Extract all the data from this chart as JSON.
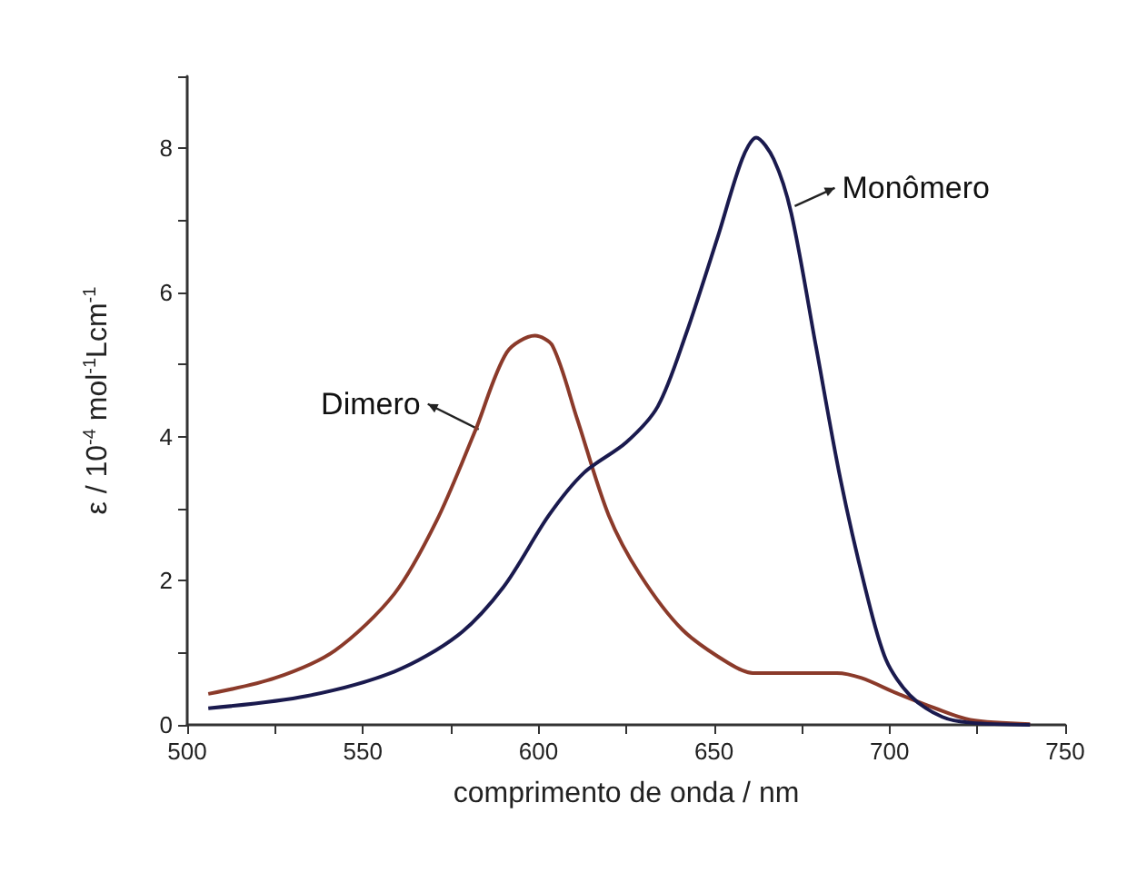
{
  "chart_data": {
    "type": "line",
    "xlabel": "comprimento de onda / nm",
    "ylabel": "ε / 10$^{-4}$ mol$^{-1}$Lcm$^{-1}$",
    "xlim": [
      500,
      750
    ],
    "ylim": [
      0,
      9
    ],
    "xticks": [
      500,
      {
        "value": 525,
        "label": null
      },
      550,
      {
        "value": 575,
        "label": null
      },
      600,
      {
        "value": 625,
        "label": null
      },
      650,
      {
        "value": 675,
        "label": null
      },
      700,
      {
        "value": 725,
        "label": null
      },
      750
    ],
    "yticks": [
      0,
      {
        "value": 1,
        "label": null
      },
      2,
      {
        "value": 3,
        "label": null
      },
      4,
      {
        "value": 5,
        "label": null
      },
      6,
      {
        "value": 7,
        "label": null
      },
      8,
      {
        "value": 9,
        "label": null
      }
    ],
    "grid": false,
    "marker": "none",
    "line_style": "solid",
    "series": [
      {
        "color": "#8b3a2a",
        "x": [
          506,
          525,
          542,
          559,
          571,
          582,
          591,
          599,
          604,
          611,
          620,
          629,
          641,
          654,
          661,
          671,
          685,
          692,
          702,
          713,
          723,
          740
        ],
        "values": [
          0.43,
          0.65,
          1.03,
          1.82,
          2.83,
          4.08,
          5.17,
          5.4,
          5.26,
          4.25,
          2.91,
          2.08,
          1.32,
          0.86,
          0.72,
          0.72,
          0.72,
          0.65,
          0.44,
          0.23,
          0.07,
          0.01
        ]
      },
      {
        "color": "#1a1a4e",
        "x": [
          506,
          534,
          559,
          577,
          590,
          603,
          613,
          625,
          634,
          642,
          651,
          658,
          662,
          667,
          672,
          679,
          686,
          693,
          699,
          706,
          715,
          723,
          740
        ],
        "values": [
          0.23,
          0.4,
          0.74,
          1.24,
          1.91,
          2.91,
          3.5,
          3.92,
          4.42,
          5.42,
          6.76,
          7.85,
          8.15,
          7.85,
          7.1,
          5.26,
          3.41,
          1.91,
          0.9,
          0.4,
          0.11,
          0.03,
          0
        ]
      }
    ],
    "annotations": [
      {
        "text": "Dimero",
        "x": 583,
        "y": 4.1
      },
      {
        "text": "Monômero",
        "x": 673,
        "y": 7.2
      }
    ]
  }
}
